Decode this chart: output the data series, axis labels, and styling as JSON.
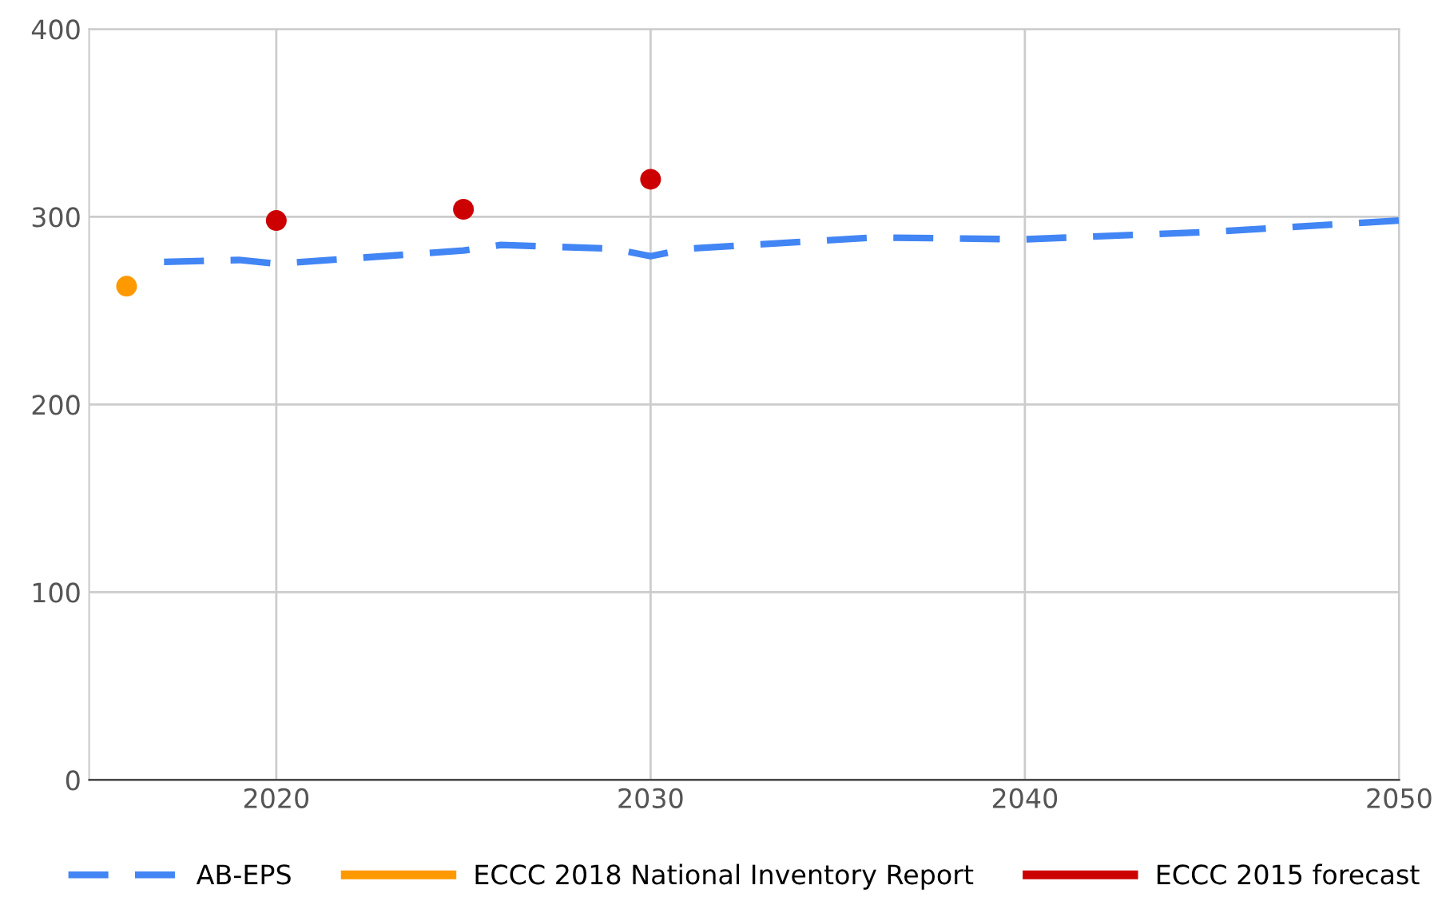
{
  "chart_data": {
    "type": "line",
    "xlim": [
      2015,
      2050
    ],
    "ylim": [
      0,
      400
    ],
    "xticks": [
      2020,
      2030,
      2040,
      2050
    ],
    "yticks": [
      0,
      100,
      200,
      300,
      400
    ],
    "grid": true,
    "legend": "bottom",
    "series": [
      {
        "name": "AB-EPS",
        "color": "#4285f4",
        "line_style": "dashed",
        "marker": "none",
        "x": [
          2017,
          2019,
          2020,
          2025,
          2026,
          2029,
          2030,
          2031,
          2036,
          2040,
          2045,
          2050
        ],
        "values": [
          276,
          277,
          275,
          282,
          285,
          283,
          279,
          283,
          289,
          288,
          292,
          298
        ]
      },
      {
        "name": "ECCC 2018 National Inventory Report",
        "color": "#ff9900",
        "type": "scatter",
        "marker": "circle",
        "x": [
          2016
        ],
        "values": [
          263
        ]
      },
      {
        "name": "ECCC 2015 forecast",
        "color": "#cc0000",
        "type": "scatter",
        "marker": "circle",
        "x": [
          2020,
          2025,
          2030
        ],
        "values": [
          298,
          304,
          320
        ]
      }
    ]
  }
}
